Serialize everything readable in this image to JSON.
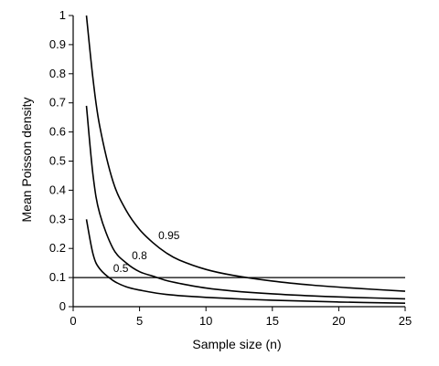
{
  "chart_data": {
    "type": "line",
    "title": "",
    "xlabel": "Sample size (n)",
    "ylabel": "Mean Poisson density",
    "xlim": [
      0,
      25
    ],
    "ylim": [
      0,
      1
    ],
    "xticks": [
      0,
      5,
      10,
      15,
      20,
      25
    ],
    "yticks": [
      0,
      0.1,
      0.2,
      0.3,
      0.4,
      0.5,
      0.6,
      0.7,
      0.8,
      0.9,
      1
    ],
    "grid": false,
    "reference_line": {
      "y": 0.1
    },
    "series": [
      {
        "name": "0.95",
        "x": [
          1.0,
          1.5,
          2,
          3,
          4,
          5,
          6,
          7,
          8,
          10,
          12,
          15,
          18,
          21,
          25
        ],
        "y": [
          1.0,
          0.78,
          0.62,
          0.43,
          0.33,
          0.265,
          0.22,
          0.185,
          0.16,
          0.128,
          0.108,
          0.088,
          0.074,
          0.064,
          0.053
        ]
      },
      {
        "name": "0.8",
        "x": [
          1.0,
          1.5,
          2,
          3,
          4,
          5,
          6,
          7,
          8,
          10,
          12,
          15,
          18,
          21,
          25
        ],
        "y": [
          0.69,
          0.45,
          0.32,
          0.2,
          0.15,
          0.12,
          0.105,
          0.09,
          0.08,
          0.064,
          0.054,
          0.044,
          0.037,
          0.032,
          0.027
        ]
      },
      {
        "name": "0.5",
        "x": [
          1.0,
          1.5,
          2,
          3,
          4,
          5,
          7,
          10,
          15,
          20,
          25
        ],
        "y": [
          0.3,
          0.18,
          0.13,
          0.09,
          0.068,
          0.057,
          0.042,
          0.032,
          0.022,
          0.016,
          0.012
        ]
      }
    ]
  }
}
